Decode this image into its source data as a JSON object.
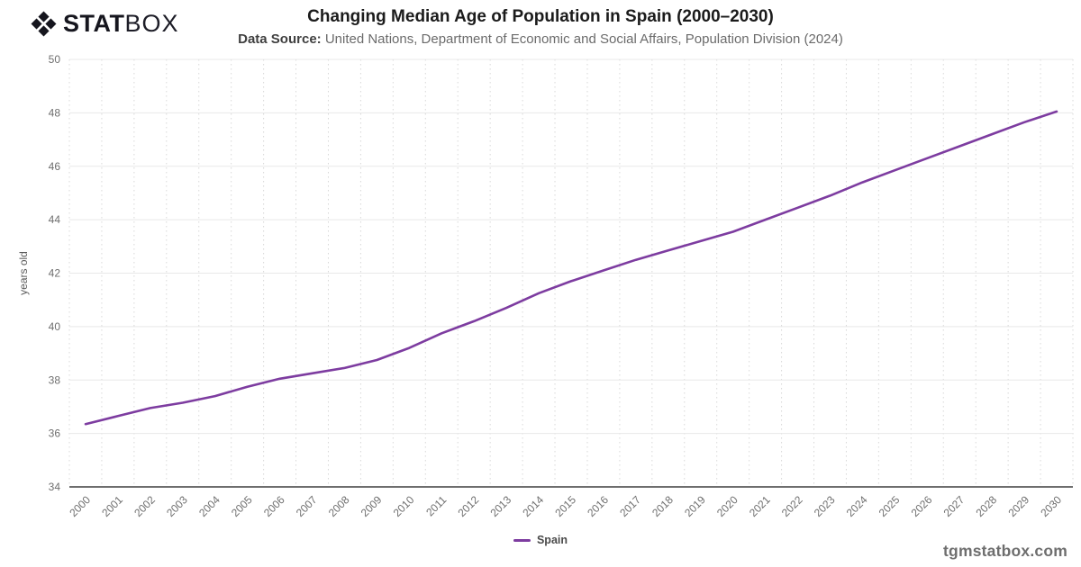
{
  "brand": {
    "stat": "STAT",
    "box": "BOX",
    "icon_color": "#16161e"
  },
  "header": {
    "title": "Changing Median Age of Population in Spain (2000–2030)",
    "source_label": "Data Source:",
    "source_text": " United Nations, Department of Economic and Social Affairs, Population Division (2024)"
  },
  "legend": {
    "label": "Spain"
  },
  "footer": {
    "watermark": "tgmstatbox.com"
  },
  "chart_data": {
    "type": "line",
    "title": "Changing Median Age of Population in Spain (2000–2030)",
    "xlabel": "",
    "ylabel": "years old",
    "x": [
      2000,
      2001,
      2002,
      2003,
      2004,
      2005,
      2006,
      2007,
      2008,
      2009,
      2010,
      2011,
      2012,
      2013,
      2014,
      2015,
      2016,
      2017,
      2018,
      2019,
      2020,
      2021,
      2022,
      2023,
      2024,
      2025,
      2026,
      2027,
      2028,
      2029,
      2030
    ],
    "series": [
      {
        "name": "Spain",
        "color": "#7d3ca0",
        "values": [
          36.35,
          36.65,
          36.95,
          37.15,
          37.4,
          37.75,
          38.05,
          38.25,
          38.45,
          38.75,
          39.2,
          39.75,
          40.2,
          40.7,
          41.25,
          41.7,
          42.1,
          42.5,
          42.85,
          43.2,
          43.55,
          44.0,
          44.45,
          44.9,
          45.4,
          45.85,
          46.3,
          46.75,
          47.2,
          47.65,
          48.05
        ]
      }
    ],
    "ylim": [
      34,
      50
    ],
    "ytick_step": 2,
    "grid": true,
    "legend_position": "bottom",
    "colors": {
      "h_grid": "#e8e8e8",
      "v_grid": "#d8d8d8",
      "axis_line": "#3f3f3f",
      "tick_label": "#6e6e6e",
      "axis_title": "#5a5a5a"
    }
  }
}
